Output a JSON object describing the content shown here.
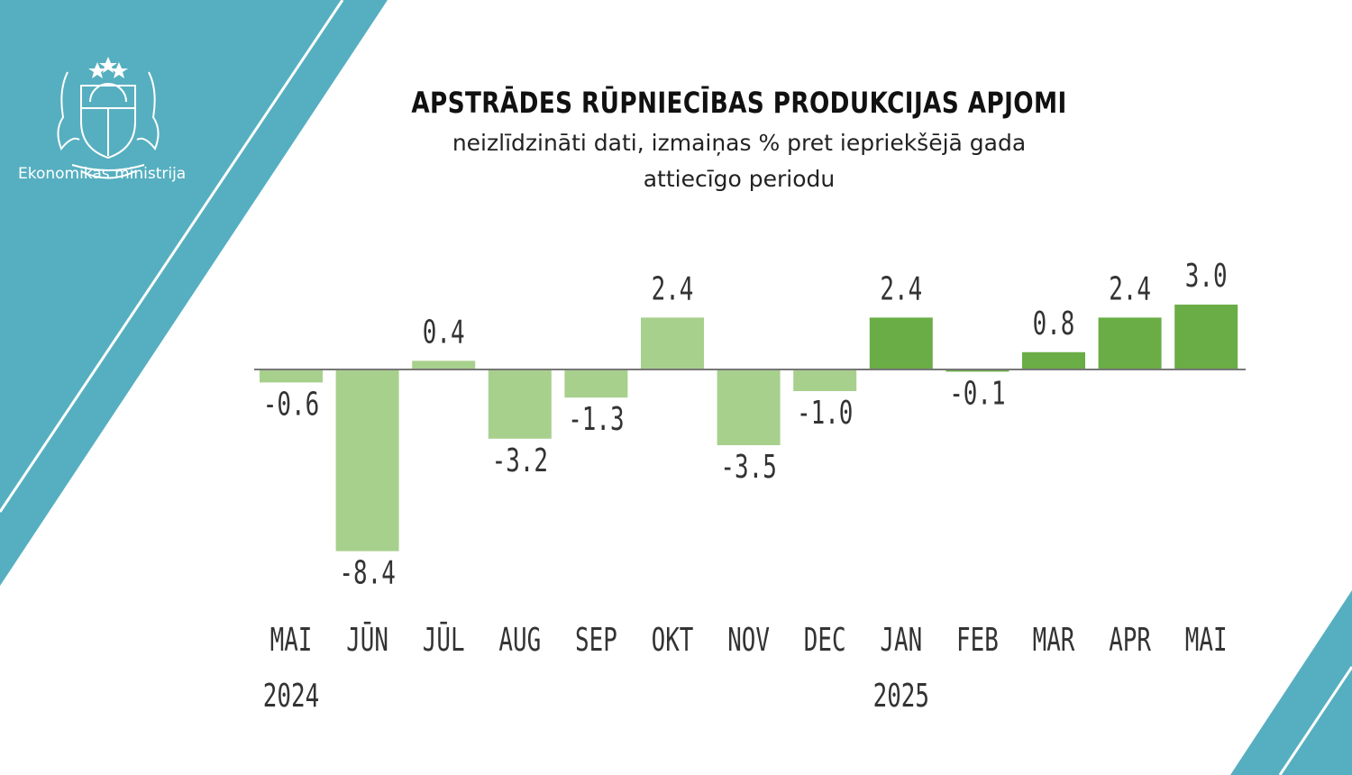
{
  "brand": {
    "ministry_name": "Ekonomikas ministrija",
    "accent_color": "#56afc0",
    "logo": "latvia-coat-of-arms"
  },
  "chart_data": {
    "type": "bar",
    "title": "APSTRĀDES RŪPNIECĪBAS PRODUKCIJAS APJOMI",
    "subtitle": [
      "neizlīdzināti dati, izmaiņas % pret iepriekšējā gada",
      "attiecīgo periodu"
    ],
    "categories": [
      "MAI",
      "JŪN",
      "JŪL",
      "AUG",
      "SEP",
      "OKT",
      "NOV",
      "DEC",
      "JAN",
      "FEB",
      "MAR",
      "APR",
      "MAI"
    ],
    "year_labels": [
      {
        "index": 0,
        "label": "2024"
      },
      {
        "index": 8,
        "label": "2025"
      }
    ],
    "values": [
      -0.6,
      -8.4,
      0.4,
      -3.2,
      -1.3,
      2.4,
      -3.5,
      -1.0,
      2.4,
      -0.1,
      0.8,
      2.4,
      3.0
    ],
    "value_labels": [
      "-0.6",
      "-8.4",
      "0.4",
      "-3.2",
      "-1.3",
      "2.4",
      "-3.5",
      "-1.0",
      "2.4",
      "-0.1",
      "0.8",
      "2.4",
      "3.0"
    ],
    "colors": {
      "2024": "#a8d08d",
      "2025": "#6aad46"
    },
    "color_split_index": 8,
    "ylim": [
      -8.4,
      3.0
    ],
    "grid": false,
    "legend": "none"
  }
}
